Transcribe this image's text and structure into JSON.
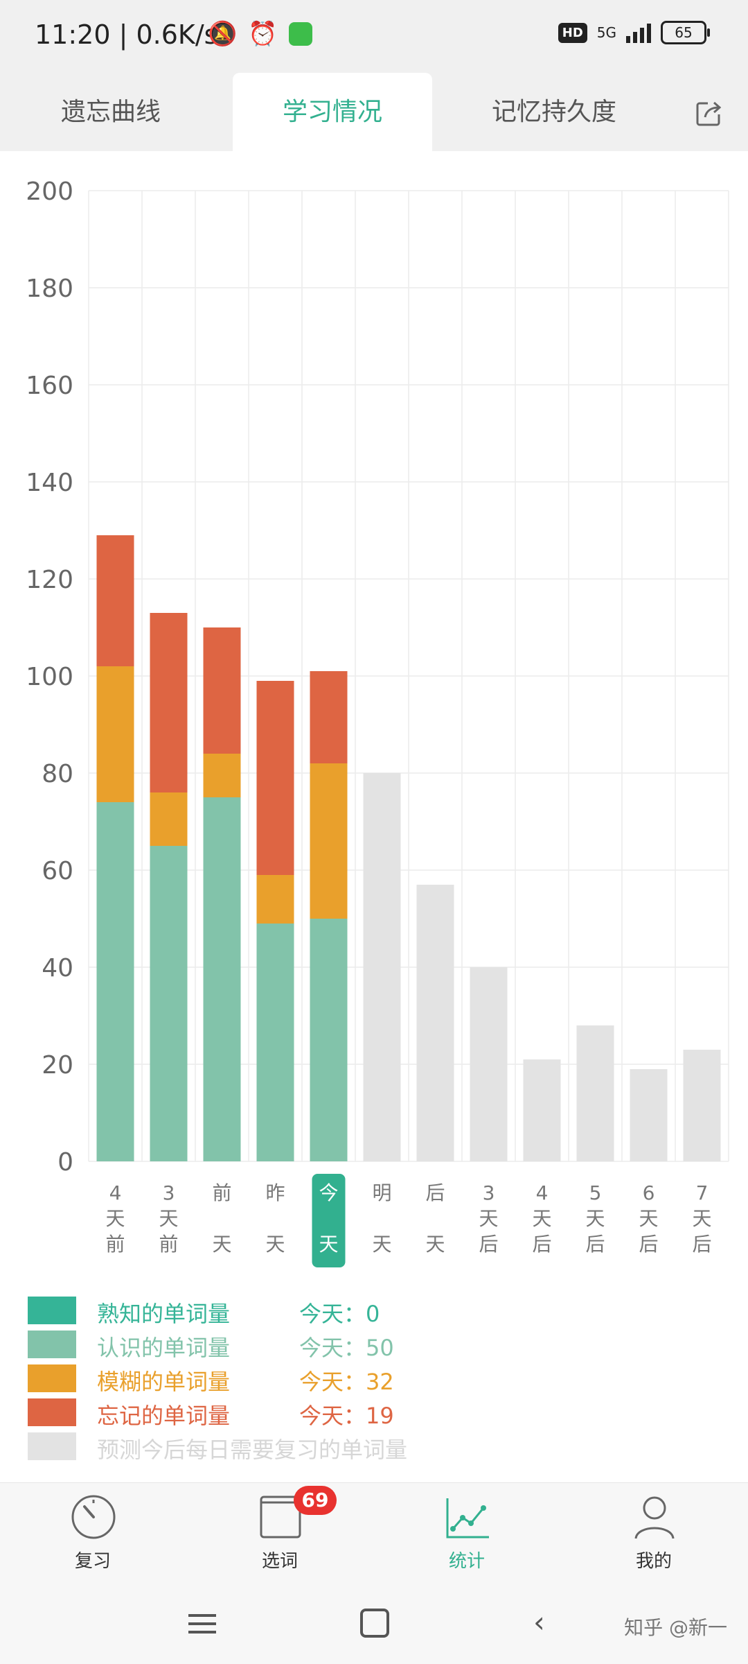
{
  "status_bar": {
    "time": "11:20 | 0.6K/s",
    "hd_badge": "HD",
    "network": "5G",
    "battery": "65"
  },
  "tabs": [
    {
      "label": "遗忘曲线"
    },
    {
      "label": "学习情况"
    },
    {
      "label": "记忆持久度"
    }
  ],
  "active_tab": 1,
  "colors": {
    "accent": "#32b08f",
    "known_well": "#35b497",
    "recognized": "#82c3aa",
    "fuzzy": "#e9a02c",
    "forgotten": "#de6543",
    "predicted": "#e3e3e3"
  },
  "chart_data": {
    "type": "bar",
    "stacked": true,
    "ylim": [
      0,
      200
    ],
    "yticks": [
      "0",
      "20",
      "40",
      "60",
      "80",
      "100",
      "120",
      "140",
      "160",
      "180",
      "200"
    ],
    "categories": [
      [
        "4",
        "天",
        "前"
      ],
      [
        "3",
        "天",
        "前"
      ],
      [
        "前",
        "",
        "天"
      ],
      [
        "昨",
        "",
        "天"
      ],
      [
        "今",
        "",
        "天"
      ],
      [
        "明",
        "",
        "天"
      ],
      [
        "后",
        "",
        "天"
      ],
      [
        "3",
        "天",
        "后"
      ],
      [
        "4",
        "天",
        "后"
      ],
      [
        "5",
        "天",
        "后"
      ],
      [
        "6",
        "天",
        "后"
      ],
      [
        "7",
        "天",
        "后"
      ]
    ],
    "highlight_index": 4,
    "series": [
      {
        "name": "熟知的单词量",
        "color": "#35b497",
        "values": [
          0,
          0,
          0,
          0,
          0,
          null,
          null,
          null,
          null,
          null,
          null,
          null
        ]
      },
      {
        "name": "认识的单词量",
        "color": "#82c3aa",
        "values": [
          74,
          65,
          75,
          49,
          50,
          null,
          null,
          null,
          null,
          null,
          null,
          null
        ]
      },
      {
        "name": "模糊的单词量",
        "color": "#e9a02c",
        "values": [
          28,
          11,
          9,
          10,
          32,
          null,
          null,
          null,
          null,
          null,
          null,
          null
        ]
      },
      {
        "name": "忘记的单词量",
        "color": "#de6543",
        "values": [
          27,
          37,
          26,
          40,
          19,
          null,
          null,
          null,
          null,
          null,
          null,
          null
        ]
      },
      {
        "name": "预测今后每日需要复习的单词量",
        "color": "#e3e3e3",
        "values": [
          null,
          null,
          null,
          null,
          null,
          80,
          57,
          40,
          21,
          28,
          19,
          23
        ]
      }
    ]
  },
  "legend": [
    {
      "label": "熟知的单词量",
      "today": "今天：0",
      "color": "#35b497"
    },
    {
      "label": "认识的单词量",
      "today": "今天：50",
      "color": "#82c3aa"
    },
    {
      "label": "模糊的单词量",
      "today": "今天：32",
      "color": "#e9a02c"
    },
    {
      "label": "忘记的单词量",
      "today": "今天：19",
      "color": "#de6543"
    },
    {
      "label": "预测今后每日需要复习的单词量",
      "today": "",
      "color": "#e3e3e3"
    }
  ],
  "bottom_nav": [
    {
      "label": "复习",
      "icon": "dial-icon"
    },
    {
      "label": "选词",
      "icon": "book-icon",
      "badge": "69"
    },
    {
      "label": "统计",
      "icon": "line-chart-icon"
    },
    {
      "label": "我的",
      "icon": "person-icon"
    }
  ],
  "bottom_nav_active": 2,
  "watermark": "知乎 @新一"
}
